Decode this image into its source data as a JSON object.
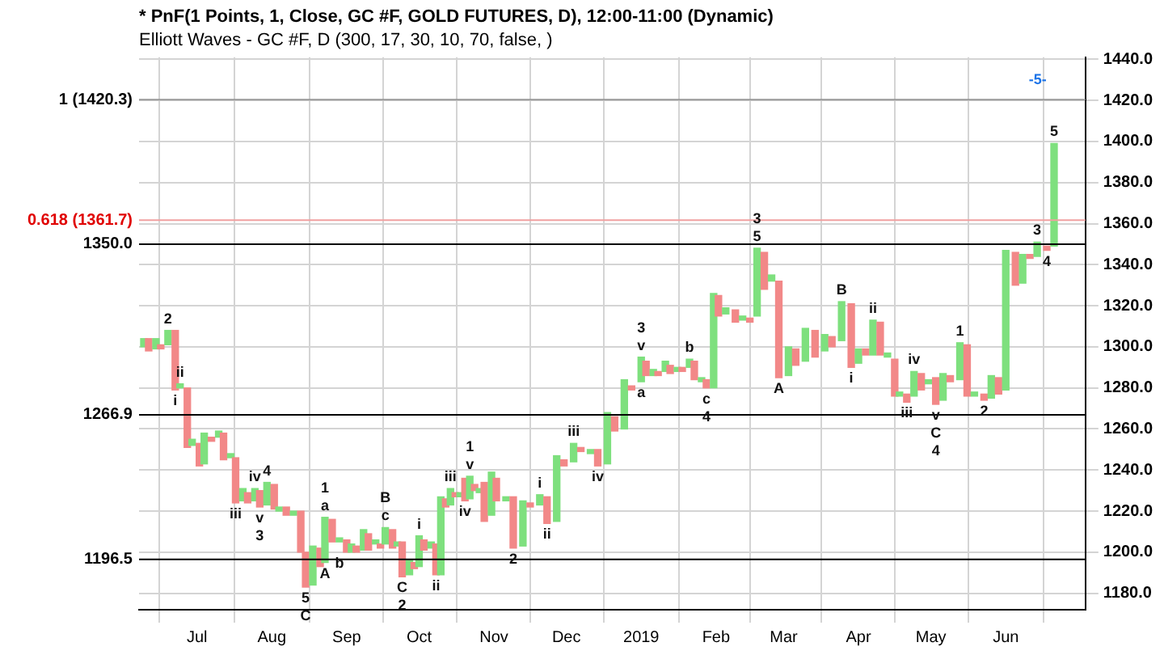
{
  "chart_data": {
    "type": "bar",
    "title": "* PnF(1 Points, 1, Close, GC #F, GOLD FUTURES, D), 12:00-11:00 (Dynamic)",
    "subtitle": "Elliott Waves - GC #F, D (300, 17, 30, 10, 70, false, )",
    "x": [
      "2018-06-09",
      "2018-06-11",
      "2018-06-14",
      "2018-06-16",
      "2018-06-19",
      "2018-06-22",
      "2018-06-24",
      "2018-06-27",
      "2018-06-29",
      "2018-07-02",
      "2018-07-04",
      "2018-07-07",
      "2018-07-10",
      "2018-07-12",
      "2018-07-15",
      "2018-07-17",
      "2018-07-20",
      "2018-07-22",
      "2018-07-25",
      "2018-07-27",
      "2018-07-30",
      "2018-08-02",
      "2018-08-04",
      "2018-08-07",
      "2018-08-10",
      "2018-08-13",
      "2018-08-15",
      "2018-08-18",
      "2018-08-21",
      "2018-08-23",
      "2018-08-26",
      "2018-08-29",
      "2018-09-01",
      "2018-09-03",
      "2018-09-05",
      "2018-09-08",
      "2018-09-10",
      "2018-09-13",
      "2018-09-15",
      "2018-09-17",
      "2018-09-20",
      "2018-09-22",
      "2018-09-24",
      "2018-09-27",
      "2018-09-29",
      "2018-10-01",
      "2018-10-03",
      "2018-10-06",
      "2018-10-08",
      "2018-10-10",
      "2018-10-12",
      "2018-10-14",
      "2018-10-16",
      "2018-10-18",
      "2018-10-20",
      "2018-10-22",
      "2018-10-24",
      "2018-10-26",
      "2018-10-28",
      "2018-10-31",
      "2018-11-02",
      "2018-11-06",
      "2018-11-09",
      "2018-11-13",
      "2018-11-16",
      "2018-11-20",
      "2018-11-23",
      "2018-11-27",
      "2018-11-30",
      "2018-12-04",
      "2018-12-07",
      "2018-12-11",
      "2018-12-14",
      "2018-12-18",
      "2018-12-21",
      "2018-12-25",
      "2018-12-28",
      "2019-01-01",
      "2019-01-03",
      "2019-01-06",
      "2019-01-08",
      "2019-01-11",
      "2019-01-13",
      "2019-01-16",
      "2019-01-18",
      "2019-01-21",
      "2019-01-23",
      "2019-01-26",
      "2019-01-28",
      "2019-01-31",
      "2019-02-02",
      "2019-02-05",
      "2019-02-09",
      "2019-02-12",
      "2019-02-15",
      "2019-02-18",
      "2019-02-21",
      "2019-02-24",
      "2019-02-27",
      "2019-03-03",
      "2019-03-06",
      "2019-03-10",
      "2019-03-14",
      "2019-03-18",
      "2019-03-21",
      "2019-03-25",
      "2019-03-29",
      "2019-04-01",
      "2019-04-04",
      "2019-04-07",
      "2019-04-10",
      "2019-04-13",
      "2019-04-16",
      "2019-04-18",
      "2019-04-21",
      "2019-04-24",
      "2019-04-27",
      "2019-04-30",
      "2019-05-03",
      "2019-05-06",
      "2019-05-09",
      "2019-05-13",
      "2019-05-16",
      "2019-05-19",
      "2019-05-23",
      "2019-05-26",
      "2019-05-29",
      "2019-06-01",
      "2019-06-05",
      "2019-06-08",
      "2019-06-11",
      "2019-06-14",
      "2019-06-18",
      "2019-06-21"
    ],
    "base": [
      1300,
      1298,
      1299,
      1299,
      1301,
      1279,
      1280,
      1251,
      1252,
      1242,
      1243,
      1254,
      1256,
      1245,
      1246,
      1224,
      1225,
      1224,
      1225,
      1222,
      1223,
      1221,
      1220,
      1218,
      1218,
      1200,
      1183,
      1184,
      1193,
      1195,
      1205,
      1205,
      1200,
      1200,
      1200,
      1201,
      1201,
      1204,
      1202,
      1204,
      1202,
      1203,
      1188,
      1189,
      1192,
      1193,
      1201,
      1202,
      1189,
      1189,
      1222,
      1223,
      1227,
      1227,
      1225,
      1226,
      1230,
      1229,
      1215,
      1218,
      1225,
      1225,
      1202,
      1203,
      1222,
      1223,
      1214,
      1215,
      1242,
      1244,
      1249,
      1248,
      1242,
      1243,
      1259,
      1260,
      1279,
      1283,
      1286,
      1286,
      1286,
      1288,
      1287,
      1288,
      1288,
      1290,
      1284,
      1283,
      1280,
      1280,
      1315,
      1316,
      1312,
      1313,
      1312,
      1315,
      1328,
      1332,
      1285,
      1286,
      1291,
      1293,
      1295,
      1298,
      1300,
      1303,
      1290,
      1292,
      1296,
      1296,
      1296,
      1295,
      1276,
      1276,
      1273,
      1276,
      1279,
      1282,
      1272,
      1274,
      1283,
      1284,
      1276,
      1276,
      1274,
      1275,
      1277,
      1279,
      1330,
      1331,
      1343,
      1344,
      1347,
      1349
    ],
    "values": [
      4,
      6,
      5,
      2,
      7,
      29,
      2,
      29,
      3,
      11,
      15,
      2,
      3,
      13,
      2,
      22,
      6,
      5,
      6,
      8,
      11,
      12,
      2,
      4,
      2,
      20,
      17,
      19,
      9,
      22,
      11,
      2,
      6,
      4,
      3,
      10,
      8,
      2,
      2,
      8,
      9,
      2,
      17,
      7,
      3,
      15,
      5,
      3,
      15,
      38,
      4,
      8,
      2,
      2,
      11,
      11,
      3,
      2,
      19,
      21,
      11,
      2,
      25,
      22,
      2,
      5,
      13,
      32,
      3,
      9,
      2,
      2,
      8,
      25,
      7,
      24,
      2,
      12,
      7,
      3,
      2,
      5,
      4,
      2,
      2,
      4,
      9,
      2,
      4,
      46,
      10,
      3,
      6,
      2,
      2,
      33,
      18,
      3,
      47,
      14,
      8,
      16,
      13,
      8,
      5,
      19,
      31,
      7,
      3,
      17,
      16,
      2,
      18,
      2,
      4,
      12,
      8,
      2,
      13,
      13,
      3,
      18,
      25,
      2,
      3,
      11,
      8,
      68,
      16,
      14,
      2,
      7,
      2,
      50
    ],
    "colors": [
      "#7ee07e",
      "#f28888",
      "#7ee07e",
      "#f28888",
      "#7ee07e",
      "#f28888",
      "#7ee07e",
      "#f28888",
      "#7ee07e",
      "#f28888",
      "#7ee07e",
      "#f28888",
      "#7ee07e",
      "#f28888",
      "#7ee07e",
      "#f28888",
      "#7ee07e",
      "#f28888",
      "#7ee07e",
      "#f28888",
      "#7ee07e",
      "#f28888",
      "#7ee07e",
      "#f28888",
      "#7ee07e",
      "#f28888",
      "#f28888",
      "#7ee07e",
      "#f28888",
      "#7ee07e",
      "#f28888",
      "#7ee07e",
      "#f28888",
      "#7ee07e",
      "#f28888",
      "#7ee07e",
      "#f28888",
      "#7ee07e",
      "#f28888",
      "#7ee07e",
      "#f28888",
      "#7ee07e",
      "#f28888",
      "#7ee07e",
      "#f28888",
      "#7ee07e",
      "#f28888",
      "#7ee07e",
      "#f28888",
      "#7ee07e",
      "#f28888",
      "#7ee07e",
      "#f28888",
      "#7ee07e",
      "#f28888",
      "#7ee07e",
      "#f28888",
      "#7ee07e",
      "#f28888",
      "#7ee07e",
      "#f28888",
      "#7ee07e",
      "#f28888",
      "#7ee07e",
      "#f28888",
      "#7ee07e",
      "#f28888",
      "#7ee07e",
      "#f28888",
      "#7ee07e",
      "#f28888",
      "#7ee07e",
      "#f28888",
      "#7ee07e",
      "#f28888",
      "#7ee07e",
      "#f28888",
      "#7ee07e",
      "#f28888",
      "#7ee07e",
      "#f28888",
      "#7ee07e",
      "#f28888",
      "#7ee07e",
      "#f28888",
      "#7ee07e",
      "#f28888",
      "#7ee07e",
      "#f28888",
      "#7ee07e",
      "#f28888",
      "#7ee07e",
      "#f28888",
      "#7ee07e",
      "#f28888",
      "#7ee07e",
      "#f28888",
      "#7ee07e",
      "#f28888",
      "#7ee07e",
      "#f28888",
      "#7ee07e",
      "#f28888",
      "#7ee07e",
      "#f28888",
      "#7ee07e",
      "#f28888",
      "#7ee07e",
      "#f28888",
      "#7ee07e",
      "#f28888",
      "#7ee07e",
      "#f28888",
      "#7ee07e",
      "#f28888",
      "#7ee07e",
      "#f28888",
      "#7ee07e",
      "#f28888",
      "#7ee07e",
      "#f28888",
      "#7ee07e",
      "#f28888",
      "#7ee07e",
      "#f28888",
      "#7ee07e",
      "#f28888",
      "#7ee07e",
      "#f28888",
      "#7ee07e",
      "#f28888",
      "#7ee07e",
      "#f28888",
      "#7ee07e"
    ],
    "xlim": [
      "2018-06-07",
      "2019-07-04"
    ],
    "xticks": [
      {
        "value": "2018-07-01",
        "label": "Jul"
      },
      {
        "value": "2018-08-01",
        "label": "Aug"
      },
      {
        "value": "2018-09-01",
        "label": "Sep"
      },
      {
        "value": "2018-10-01",
        "label": "Oct"
      },
      {
        "value": "2018-11-01",
        "label": "Nov"
      },
      {
        "value": "2018-12-01",
        "label": "Dec"
      },
      {
        "value": "2019-01-01",
        "label": "2019"
      },
      {
        "value": "2019-02-01",
        "label": "Feb"
      },
      {
        "value": "2019-03-01",
        "label": "Mar"
      },
      {
        "value": "2019-04-01",
        "label": "Apr"
      },
      {
        "value": "2019-05-01",
        "label": "May"
      },
      {
        "value": "2019-06-01",
        "label": "Jun"
      }
    ],
    "ylim": [
      1172,
      1441
    ],
    "yticks": [
      {
        "value": 1180,
        "label": "1180.0"
      },
      {
        "value": 1200,
        "label": "1200.0"
      },
      {
        "value": 1220,
        "label": "1220.0"
      },
      {
        "value": 1240,
        "label": "1240.0"
      },
      {
        "value": 1260,
        "label": "1260.0"
      },
      {
        "value": 1280,
        "label": "1280.0"
      },
      {
        "value": 1300,
        "label": "1300.0"
      },
      {
        "value": 1320,
        "label": "1320.0"
      },
      {
        "value": 1340,
        "label": "1340.0"
      },
      {
        "value": 1360,
        "label": "1360.0"
      },
      {
        "value": 1380,
        "label": "1380.0"
      },
      {
        "value": 1400,
        "label": "1400.0"
      },
      {
        "value": 1420,
        "label": "1420.0"
      },
      {
        "value": 1440,
        "label": "1440.0"
      }
    ],
    "grid": true,
    "ref_lines": [
      {
        "axis": "y",
        "value": 1420.3,
        "label": "1 (1420.3)",
        "color": "#999999"
      },
      {
        "axis": "y",
        "value": 1361.7,
        "label": "0.618 (1361.7)",
        "color": "#f0a0a0"
      },
      {
        "axis": "y",
        "value": 1350,
        "label": "1350.0",
        "color": "#000000"
      },
      {
        "axis": "y",
        "value": 1266.9,
        "label": "1266.9",
        "color": "#000000"
      },
      {
        "axis": "y",
        "value": 1196.5,
        "label": "1196.5",
        "color": "#000000"
      }
    ],
    "annotations": [
      {
        "text": "2",
        "x": "2018-06-19",
        "y": 1308
      },
      {
        "text": "i",
        "x": "2018-06-22",
        "y": 1279
      },
      {
        "text": "ii",
        "x": "2018-06-24",
        "y": 1282
      },
      {
        "text": "iii",
        "x": "2018-07-17",
        "y": 1224
      },
      {
        "text": "iv",
        "x": "2018-07-25",
        "y": 1231
      },
      {
        "text": "4",
        "x": "2018-07-30",
        "y": 1234
      },
      {
        "text": "v",
        "x": "2018-07-27",
        "y": 1222
      },
      {
        "text": "3",
        "x": "2018-07-27",
        "y": 1222
      },
      {
        "text": "5",
        "x": "2018-08-15",
        "y": 1183
      },
      {
        "text": "C",
        "x": "2018-08-15",
        "y": 1183
      },
      {
        "text": "a",
        "x": "2018-08-23",
        "y": 1217
      },
      {
        "text": "1",
        "x": "2018-08-23",
        "y": 1217
      },
      {
        "text": "A",
        "x": "2018-08-23",
        "y": 1195
      },
      {
        "text": "b",
        "x": "2018-08-29",
        "y": 1200
      },
      {
        "text": "c",
        "x": "2018-09-17",
        "y": 1212
      },
      {
        "text": "B",
        "x": "2018-09-17",
        "y": 1212
      },
      {
        "text": "C",
        "x": "2018-09-24",
        "y": 1188
      },
      {
        "text": "2",
        "x": "2018-09-24",
        "y": 1188
      },
      {
        "text": "i",
        "x": "2018-10-01",
        "y": 1208
      },
      {
        "text": "ii",
        "x": "2018-10-08",
        "y": 1189
      },
      {
        "text": "iii",
        "x": "2018-10-14",
        "y": 1231
      },
      {
        "text": "iv",
        "x": "2018-10-20",
        "y": 1225
      },
      {
        "text": "v",
        "x": "2018-10-22",
        "y": 1237
      },
      {
        "text": "1",
        "x": "2018-10-22",
        "y": 1237
      },
      {
        "text": "2",
        "x": "2018-11-09",
        "y": 1202
      },
      {
        "text": "i",
        "x": "2018-11-20",
        "y": 1228
      },
      {
        "text": "ii",
        "x": "2018-11-23",
        "y": 1214
      },
      {
        "text": "iii",
        "x": "2018-12-04",
        "y": 1253
      },
      {
        "text": "iv",
        "x": "2018-12-14",
        "y": 1242
      },
      {
        "text": "v",
        "x": "2019-01-01",
        "y": 1295
      },
      {
        "text": "3",
        "x": "2019-01-01",
        "y": 1295
      },
      {
        "text": "a",
        "x": "2019-01-01",
        "y": 1283
      },
      {
        "text": "b",
        "x": "2019-01-21",
        "y": 1294
      },
      {
        "text": "c",
        "x": "2019-01-28",
        "y": 1280
      },
      {
        "text": "4",
        "x": "2019-01-28",
        "y": 1280
      },
      {
        "text": "5",
        "x": "2019-02-18",
        "y": 1348
      },
      {
        "text": "3",
        "x": "2019-02-18",
        "y": 1348
      },
      {
        "text": "A",
        "x": "2019-02-27",
        "y": 1285
      },
      {
        "text": "B",
        "x": "2019-03-25",
        "y": 1322
      },
      {
        "text": "i",
        "x": "2019-03-29",
        "y": 1290
      },
      {
        "text": "ii",
        "x": "2019-04-07",
        "y": 1313
      },
      {
        "text": "iii",
        "x": "2019-04-21",
        "y": 1273
      },
      {
        "text": "iv",
        "x": "2019-04-24",
        "y": 1288
      },
      {
        "text": "1",
        "x": "2019-05-13",
        "y": 1302
      },
      {
        "text": "v",
        "x": "2019-05-03",
        "y": 1272
      },
      {
        "text": "C",
        "x": "2019-05-03",
        "y": 1272
      },
      {
        "text": "4",
        "x": "2019-05-03",
        "y": 1272
      },
      {
        "text": "2",
        "x": "2019-05-23",
        "y": 1274
      },
      {
        "text": "3",
        "x": "2019-06-14",
        "y": 1351
      },
      {
        "text": "4",
        "x": "2019-06-18",
        "y": 1347
      },
      {
        "text": "5",
        "x": "2019-06-21",
        "y": 1399
      },
      "-5-"
    ]
  }
}
